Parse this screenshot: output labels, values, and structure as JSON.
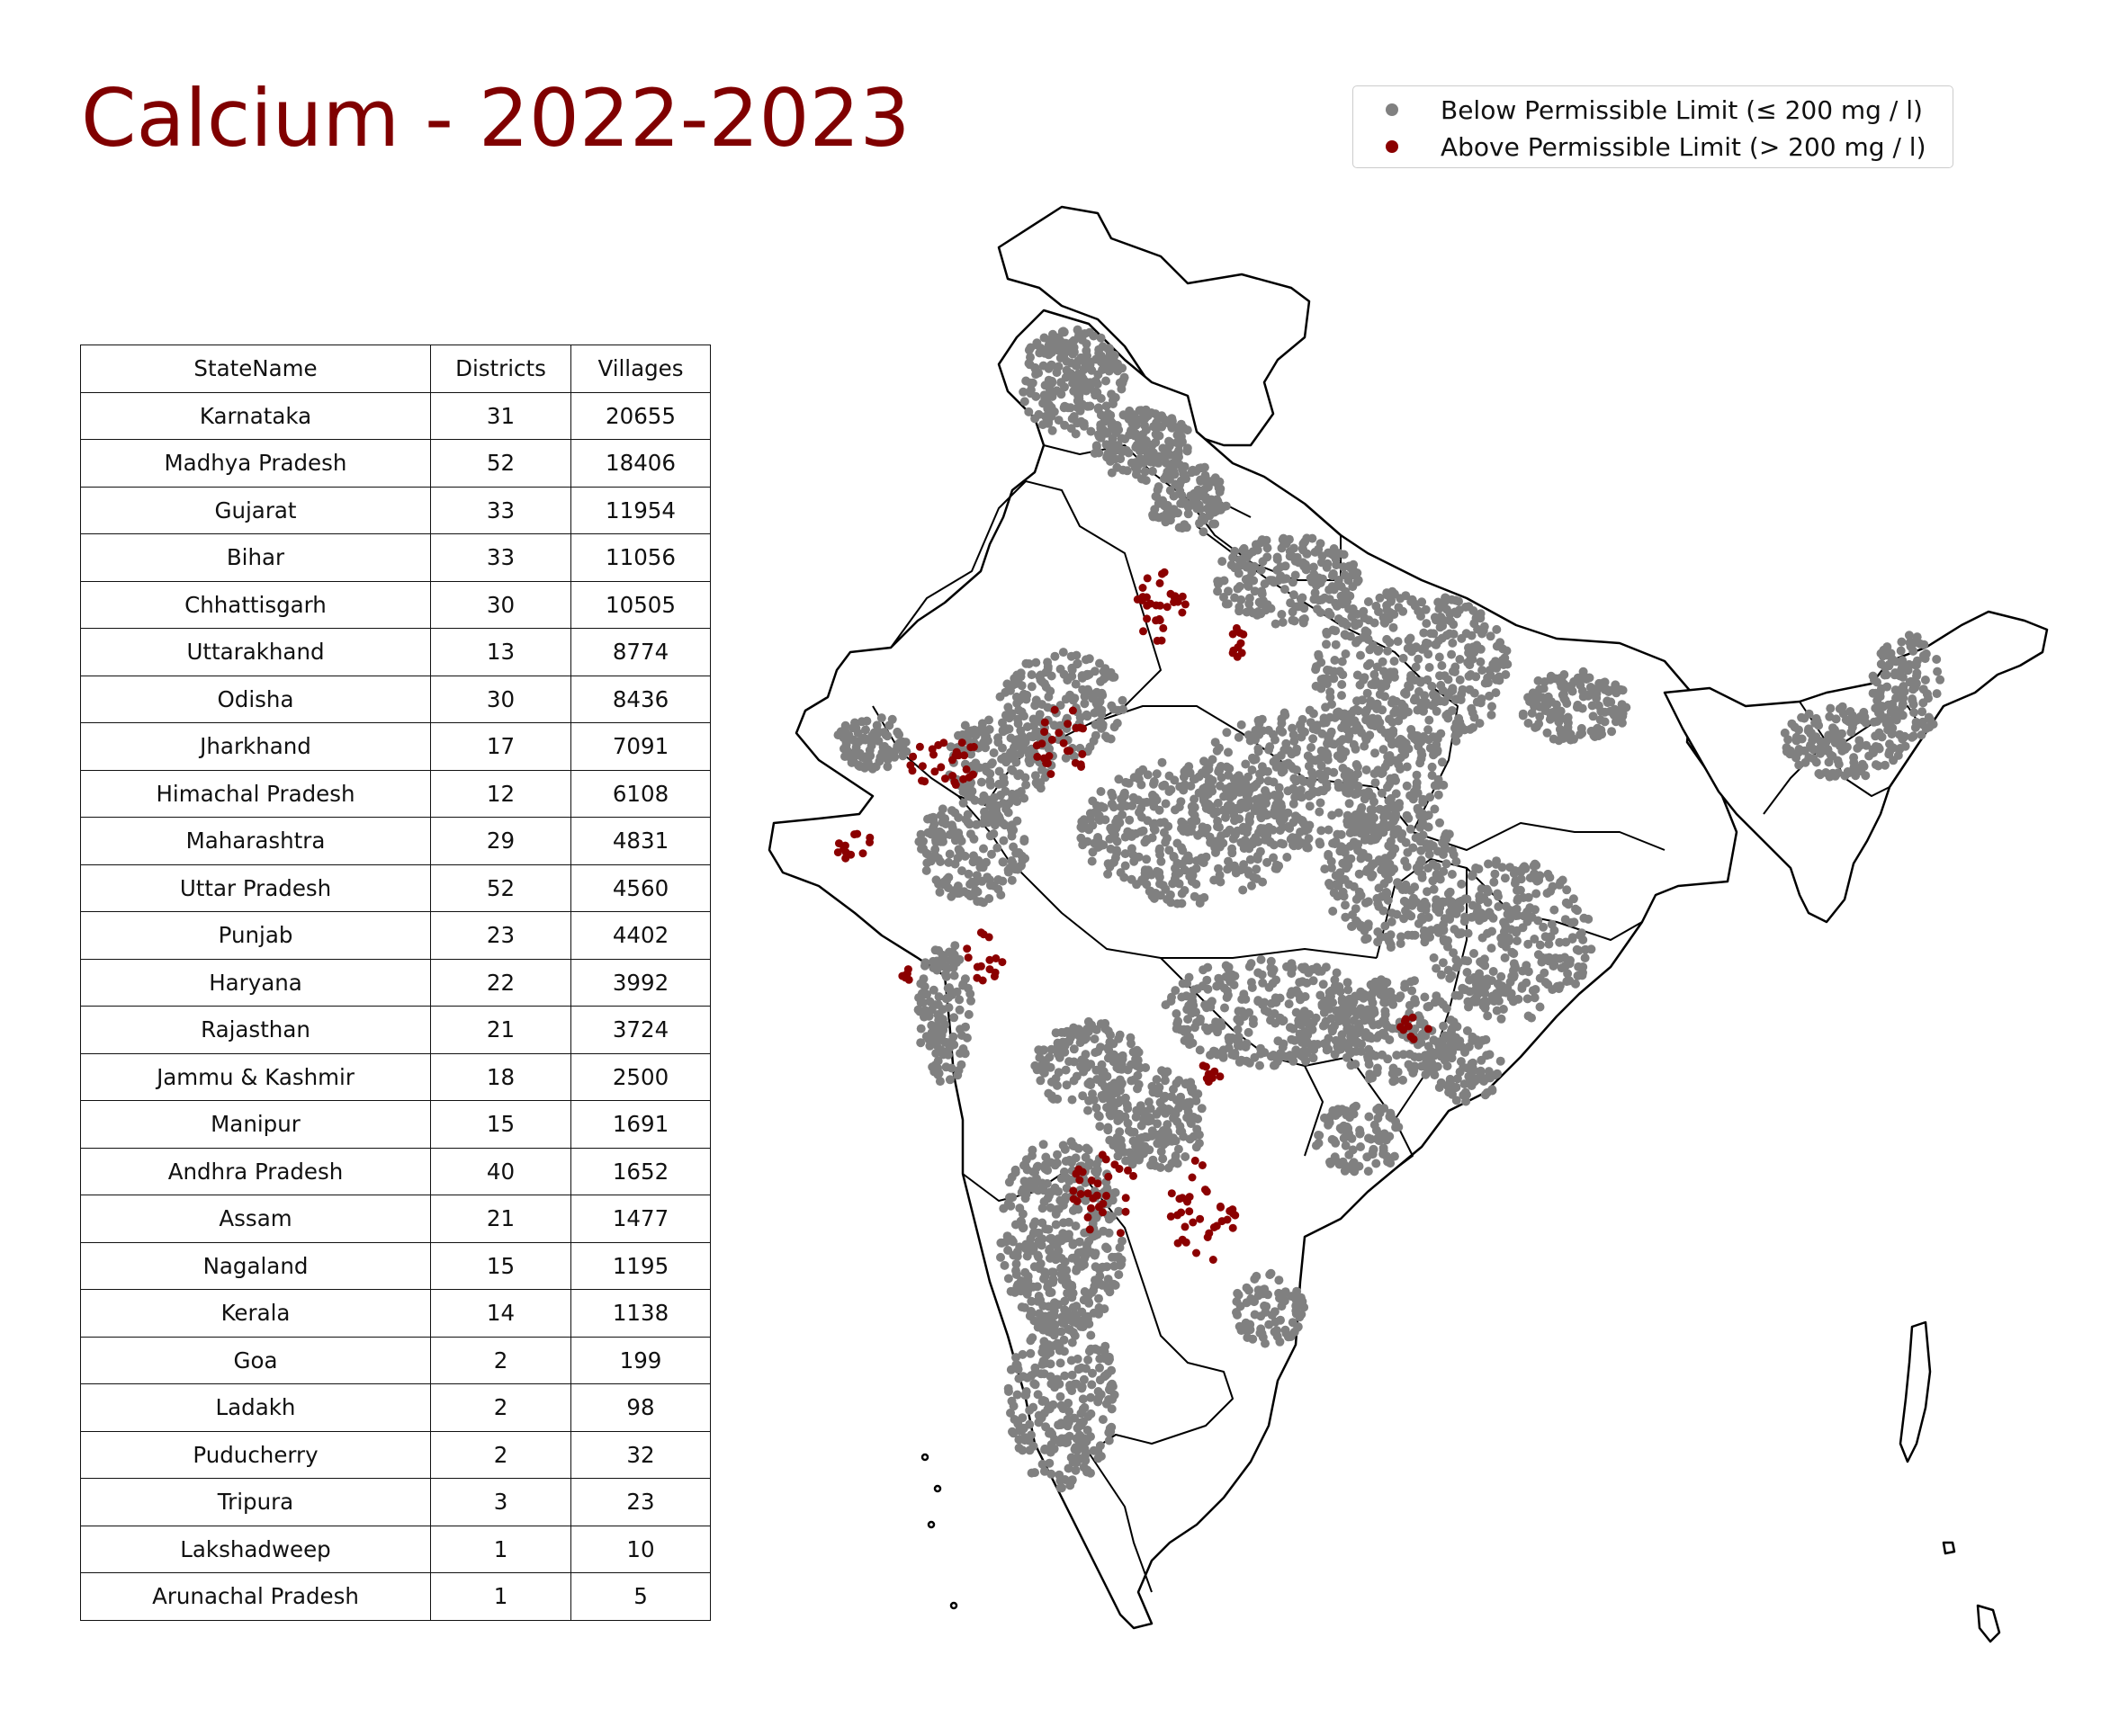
{
  "title": "Calcium - 2022-2023",
  "legend": {
    "items": [
      {
        "label": "Below Permissible Limit (≤ 200 mg / l)",
        "color": "#808080"
      },
      {
        "label": "Above Permissible Limit (> 200 mg / l)",
        "color": "#8b0000"
      }
    ]
  },
  "table": {
    "headers": [
      "StateName",
      "Districts",
      "Villages"
    ],
    "rows": [
      [
        "Karnataka",
        "31",
        "20655"
      ],
      [
        "Madhya Pradesh",
        "52",
        "18406"
      ],
      [
        "Gujarat",
        "33",
        "11954"
      ],
      [
        "Bihar",
        "33",
        "11056"
      ],
      [
        "Chhattisgarh",
        "30",
        "10505"
      ],
      [
        "Uttarakhand",
        "13",
        "8774"
      ],
      [
        "Odisha",
        "30",
        "8436"
      ],
      [
        "Jharkhand",
        "17",
        "7091"
      ],
      [
        "Himachal Pradesh",
        "12",
        "6108"
      ],
      [
        "Maharashtra",
        "29",
        "4831"
      ],
      [
        "Uttar Pradesh",
        "52",
        "4560"
      ],
      [
        "Punjab",
        "23",
        "4402"
      ],
      [
        "Haryana",
        "22",
        "3992"
      ],
      [
        "Rajasthan",
        "21",
        "3724"
      ],
      [
        "Jammu & Kashmir",
        "18",
        "2500"
      ],
      [
        "Manipur",
        "15",
        "1691"
      ],
      [
        "Andhra Pradesh",
        "40",
        "1652"
      ],
      [
        "Assam",
        "21",
        "1477"
      ],
      [
        "Nagaland",
        "15",
        "1195"
      ],
      [
        "Kerala",
        "14",
        "1138"
      ],
      [
        "Goa",
        "2",
        "199"
      ],
      [
        "Ladakh",
        "2",
        "98"
      ],
      [
        "Puducherry",
        "2",
        "32"
      ],
      [
        "Tripura",
        "3",
        "23"
      ],
      [
        "Lakshadweep",
        "1",
        "10"
      ],
      [
        "Arunachal Pradesh",
        "1",
        "5"
      ]
    ]
  },
  "map": {
    "colors": {
      "below": "#808080",
      "above": "#8b0000",
      "boundary": "#000000",
      "land": "#ffffff"
    }
  }
}
